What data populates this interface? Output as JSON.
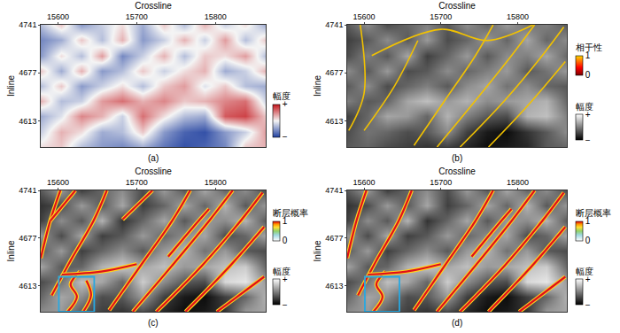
{
  "chart_data": [
    {
      "type": "heatmap",
      "label": "(a)",
      "x_label": "Crossline",
      "y_label": "Inline",
      "xlim": [
        15578,
        15864
      ],
      "xticks": [
        15600,
        15700,
        15800
      ],
      "ylim": [
        4578,
        4741
      ],
      "yticks": [
        4613,
        4677,
        4741
      ],
      "color": "red-white-blue",
      "x": [
        15578,
        15604,
        15630,
        15656,
        15682,
        15708,
        15734,
        15760,
        15786,
        15812,
        15838,
        15864
      ],
      "y": [
        4578,
        4598,
        4619,
        4639,
        4660,
        4680,
        4700,
        4721,
        4741
      ],
      "z": [
        [
          0.1,
          0.2,
          -0.3,
          -0.5,
          -0.6,
          -0.4,
          -0.7,
          -0.9,
          -0.8,
          -0.6,
          0.2,
          0.3
        ],
        [
          -0.2,
          0.3,
          0.1,
          -0.4,
          -0.3,
          0.2,
          -0.5,
          -0.8,
          -0.9,
          -0.5,
          -0.2,
          0.4
        ],
        [
          -0.4,
          -0.1,
          0.5,
          0.3,
          -0.2,
          0.6,
          0.1,
          -0.3,
          -0.4,
          0.7,
          0.8,
          0.2
        ],
        [
          0.3,
          -0.3,
          -0.2,
          0.4,
          0.6,
          0.3,
          0.5,
          0.2,
          0.3,
          0.5,
          0.6,
          -0.2
        ],
        [
          -0.3,
          0.2,
          -0.5,
          -0.2,
          0.1,
          -0.3,
          0.2,
          0.4,
          -0.1,
          0.2,
          -0.3,
          -0.4
        ],
        [
          0.2,
          -0.4,
          0.3,
          -0.5,
          -0.3,
          0.2,
          -0.2,
          0.1,
          0.3,
          -0.4,
          -0.2,
          0.3
        ],
        [
          -0.5,
          0.1,
          -0.3,
          0.4,
          -0.6,
          -0.2,
          0.3,
          -0.3,
          0.2,
          0.1,
          0.4,
          -0.3
        ],
        [
          -0.6,
          -0.4,
          0.2,
          -0.3,
          0.3,
          -0.5,
          -0.2,
          0.3,
          -0.2,
          0.4,
          -0.3,
          0.2
        ],
        [
          -0.3,
          0.2,
          -0.5,
          -0.2,
          0.1,
          -0.4,
          0.2,
          -0.3,
          0.3,
          -0.2,
          0.1,
          -0.4
        ]
      ],
      "colorbar": {
        "title": "幅度",
        "range": [
          -1,
          1
        ],
        "ticks": [
          {
            "value": 1,
            "label": "+"
          },
          {
            "value": -1,
            "label": "−"
          }
        ]
      }
    },
    {
      "type": "heatmap",
      "label": "(b)",
      "x_label": "Crossline",
      "y_label": "Inline",
      "xlim": [
        15578,
        15864
      ],
      "xticks": [
        15600,
        15700,
        15800
      ],
      "ylim": [
        4578,
        4741
      ],
      "yticks": [
        4613,
        4677,
        4741
      ],
      "color": "gray",
      "x": [
        15578,
        15604,
        15630,
        15656,
        15682,
        15708,
        15734,
        15760,
        15786,
        15812,
        15838,
        15864
      ],
      "y": [
        4578,
        4598,
        4619,
        4639,
        4660,
        4680,
        4700,
        4721,
        4741
      ],
      "z": [
        [
          -0.3,
          -0.2,
          -0.4,
          -0.5,
          -0.6,
          -0.5,
          -0.7,
          -0.9,
          -0.8,
          -0.7,
          -0.3,
          -0.2
        ],
        [
          -0.4,
          -0.1,
          -0.2,
          -0.4,
          -0.3,
          0.1,
          -0.5,
          -0.8,
          -0.9,
          -0.6,
          -0.3,
          0.1
        ],
        [
          -0.5,
          -0.2,
          0.3,
          0.2,
          -0.2,
          0.4,
          0.0,
          -0.3,
          -0.4,
          0.4,
          0.5,
          0.0
        ],
        [
          0.0,
          -0.3,
          -0.2,
          0.3,
          0.5,
          0.2,
          0.4,
          0.1,
          0.2,
          0.3,
          0.4,
          -0.2
        ],
        [
          -0.3,
          0.1,
          -0.4,
          -0.2,
          0.0,
          -0.3,
          0.1,
          0.3,
          -0.1,
          0.1,
          -0.2,
          -0.3
        ],
        [
          0.1,
          -0.3,
          0.2,
          -0.4,
          -0.3,
          0.1,
          -0.2,
          0.0,
          0.2,
          -0.3,
          -0.1,
          0.2
        ],
        [
          -0.4,
          0.0,
          -0.3,
          0.3,
          -0.5,
          -0.2,
          0.2,
          -0.3,
          0.1,
          0.0,
          0.3,
          -0.2
        ],
        [
          -0.5,
          -0.3,
          0.1,
          -0.3,
          0.2,
          -0.4,
          -0.2,
          0.2,
          -0.2,
          0.3,
          -0.2,
          0.1
        ],
        [
          -0.3,
          0.1,
          -0.4,
          -0.2,
          0.0,
          -0.3,
          0.1,
          -0.2,
          0.2,
          -0.1,
          0.0,
          -0.3
        ]
      ],
      "colorbar": {
        "title": "幅度",
        "range": [
          -1,
          1
        ],
        "ticks": [
          {
            "value": 1,
            "label": "+"
          },
          {
            "value": -1,
            "label": "−"
          }
        ]
      },
      "overlay": {
        "type": "line",
        "color": "#f2c200",
        "lines": [
          {
            "x": [
              15580,
              15600,
              15595
            ],
            "y": [
              4600,
              4650,
              4741
            ]
          },
          {
            "x": [
              15600,
              15640,
              15670
            ],
            "y": [
              4600,
              4660,
              4720
            ]
          },
          {
            "x": [
              15665,
              15705,
              15745,
              15768
            ],
            "y": [
              4580,
              4640,
              4700,
              4741
            ]
          },
          {
            "x": [
              15695,
              15745,
              15792,
              15822
            ],
            "y": [
              4578,
              4640,
              4700,
              4741
            ]
          },
          {
            "x": [
              15725,
              15783,
              15832,
              15860
            ],
            "y": [
              4578,
              4640,
              4700,
              4738
            ]
          },
          {
            "x": [
              15762,
              15812,
              15862
            ],
            "y": [
              4578,
              4632,
              4692
            ]
          },
          {
            "x": [
              15610,
              15700,
              15760,
              15820
            ],
            "y": [
              4700,
              4735,
              4720,
              4741
            ]
          }
        ],
        "colorbar": {
          "title": "相干性",
          "color": "red-yellow",
          "range": [
            0,
            1
          ],
          "ticks": [
            0,
            1
          ]
        }
      }
    },
    {
      "type": "heatmap",
      "label": "(c)",
      "x_label": "Crossline",
      "y_label": "Inline",
      "xlim": [
        15578,
        15864
      ],
      "xticks": [
        15600,
        15700,
        15800
      ],
      "ylim": [
        4578,
        4741
      ],
      "yticks": [
        4613,
        4677,
        4741
      ],
      "color": "gray",
      "x": [
        15578,
        15604,
        15630,
        15656,
        15682,
        15708,
        15734,
        15760,
        15786,
        15812,
        15838,
        15864
      ],
      "y": [
        4578,
        4598,
        4619,
        4639,
        4660,
        4680,
        4700,
        4721,
        4741
      ],
      "z": [
        [
          0.1,
          0.2,
          -0.3,
          -0.5,
          -0.6,
          -0.4,
          -0.7,
          -0.9,
          -0.8,
          -0.6,
          0.2,
          0.3
        ],
        [
          -0.2,
          0.3,
          0.1,
          -0.4,
          -0.3,
          0.2,
          -0.5,
          -0.8,
          -0.9,
          -0.5,
          -0.2,
          0.4
        ],
        [
          -0.4,
          -0.1,
          0.5,
          0.3,
          -0.2,
          0.6,
          0.1,
          -0.3,
          -0.4,
          0.7,
          0.8,
          0.2
        ],
        [
          0.3,
          -0.3,
          -0.2,
          0.4,
          0.6,
          0.3,
          0.5,
          0.2,
          0.3,
          0.5,
          0.6,
          -0.2
        ],
        [
          -0.3,
          0.2,
          -0.5,
          -0.2,
          0.1,
          -0.3,
          0.2,
          0.4,
          -0.1,
          0.2,
          -0.3,
          -0.4
        ],
        [
          0.2,
          -0.4,
          0.3,
          -0.5,
          -0.3,
          0.2,
          -0.2,
          0.1,
          0.3,
          -0.4,
          -0.2,
          0.3
        ],
        [
          -0.5,
          0.1,
          -0.3,
          0.4,
          -0.6,
          -0.2,
          0.3,
          -0.3,
          0.2,
          0.1,
          0.4,
          -0.3
        ],
        [
          -0.6,
          -0.4,
          0.2,
          -0.3,
          0.3,
          -0.5,
          -0.2,
          0.3,
          -0.2,
          0.4,
          -0.3,
          0.2
        ],
        [
          -0.3,
          0.2,
          -0.5,
          -0.2,
          0.1,
          -0.4,
          0.2,
          -0.3,
          0.3,
          -0.2,
          0.1,
          -0.4
        ]
      ],
      "colorbar": {
        "title": "幅度",
        "range": [
          -1,
          1
        ],
        "ticks": [
          {
            "value": 1,
            "label": "+"
          },
          {
            "value": -1,
            "label": "−"
          }
        ]
      },
      "overlay": {
        "type": "line",
        "color": "#e0101a",
        "lines": [
          {
            "x": [
              15578,
              15590,
              15603
            ],
            "y": [
              4650,
              4700,
              4741
            ]
          },
          {
            "x": [
              15590,
              15622
            ],
            "y": [
              4700,
              4741
            ]
          },
          {
            "x": [
              15592,
              15615,
              15645,
              15662
            ],
            "y": [
              4600,
              4645,
              4700,
              4741
            ]
          },
          {
            "x": [
              15612,
              15624,
              15616,
              15628
            ],
            "y": [
              4578,
              4598,
              4615,
              4632
            ]
          },
          {
            "x": [
              15632,
              15642,
              15636
            ],
            "y": [
              4578,
              4600,
              4620
            ]
          },
          {
            "x": [
              15665,
              15705,
              15745,
              15768
            ],
            "y": [
              4580,
              4640,
              4700,
              4741
            ]
          },
          {
            "x": [
              15682,
              15720
            ],
            "y": [
              4702,
              4741
            ]
          },
          {
            "x": [
              15695,
              15745,
              15792,
              15822
            ],
            "y": [
              4578,
              4640,
              4700,
              4741
            ]
          },
          {
            "x": [
              15725,
              15783,
              15832,
              15860
            ],
            "y": [
              4578,
              4640,
              4700,
              4738
            ]
          },
          {
            "x": [
              15762,
              15812,
              15862
            ],
            "y": [
              4578,
              4632,
              4692
            ]
          },
          {
            "x": [
              15802,
              15862
            ],
            "y": [
              4578,
              4625
            ]
          },
          {
            "x": [
              15605,
              15655,
              15700
            ],
            "y": [
              4628,
              4632,
              4642
            ]
          },
          {
            "x": [
              15740,
              15772,
              15792
            ],
            "y": [
              4652,
              4692,
              4716
            ]
          }
        ],
        "colorbar": {
          "title": "断层概率",
          "color": "white-green-red",
          "range": [
            0,
            1
          ],
          "ticks": [
            0,
            1
          ]
        }
      },
      "highlight_box": {
        "x": [
          15601,
          15646
        ],
        "y": [
          4578,
          4625
        ],
        "color": "#29a8e0"
      }
    },
    {
      "type": "heatmap",
      "label": "(d)",
      "x_label": "Crossline",
      "y_label": "Inline",
      "xlim": [
        15578,
        15864
      ],
      "xticks": [
        15600,
        15700,
        15800
      ],
      "ylim": [
        4578,
        4741
      ],
      "yticks": [
        4613,
        4677,
        4741
      ],
      "color": "gray",
      "x": [
        15578,
        15604,
        15630,
        15656,
        15682,
        15708,
        15734,
        15760,
        15786,
        15812,
        15838,
        15864
      ],
      "y": [
        4578,
        4598,
        4619,
        4639,
        4660,
        4680,
        4700,
        4721,
        4741
      ],
      "z": [
        [
          0.1,
          0.2,
          -0.3,
          -0.5,
          -0.6,
          -0.4,
          -0.7,
          -0.9,
          -0.8,
          -0.6,
          0.2,
          0.3
        ],
        [
          -0.2,
          0.3,
          0.1,
          -0.4,
          -0.3,
          0.2,
          -0.5,
          -0.8,
          -0.9,
          -0.5,
          -0.2,
          0.4
        ],
        [
          -0.4,
          -0.1,
          0.5,
          0.3,
          -0.2,
          0.6,
          0.1,
          -0.3,
          -0.4,
          0.7,
          0.8,
          0.2
        ],
        [
          0.3,
          -0.3,
          -0.2,
          0.4,
          0.6,
          0.3,
          0.5,
          0.2,
          0.3,
          0.5,
          0.6,
          -0.2
        ],
        [
          -0.3,
          0.2,
          -0.5,
          -0.2,
          0.1,
          -0.3,
          0.2,
          0.4,
          -0.1,
          0.2,
          -0.3,
          -0.4
        ],
        [
          0.2,
          -0.4,
          0.3,
          -0.5,
          -0.3,
          0.2,
          -0.2,
          0.1,
          0.3,
          -0.4,
          -0.2,
          0.3
        ],
        [
          -0.5,
          0.1,
          -0.3,
          0.4,
          -0.6,
          -0.2,
          0.3,
          -0.3,
          0.2,
          0.1,
          0.4,
          -0.3
        ],
        [
          -0.6,
          -0.4,
          0.2,
          -0.3,
          0.3,
          -0.5,
          -0.2,
          0.3,
          -0.2,
          0.4,
          -0.3,
          0.2
        ],
        [
          -0.3,
          0.2,
          -0.5,
          -0.2,
          0.1,
          -0.4,
          0.2,
          -0.3,
          0.3,
          -0.2,
          0.1,
          -0.4
        ]
      ],
      "colorbar": {
        "title": "幅度",
        "range": [
          -1,
          1
        ],
        "ticks": [
          {
            "value": 1,
            "label": "+"
          },
          {
            "value": -1,
            "label": "−"
          }
        ]
      },
      "overlay": {
        "type": "line",
        "color": "#e0101a",
        "lines": [
          {
            "x": [
              15578,
              15590,
              15603
            ],
            "y": [
              4650,
              4700,
              4741
            ]
          },
          {
            "x": [
              15592,
              15615,
              15645,
              15662
            ],
            "y": [
              4600,
              4645,
              4700,
              4741
            ]
          },
          {
            "x": [
              15612,
              15624,
              15616,
              15628
            ],
            "y": [
              4578,
              4598,
              4615,
              4632
            ]
          },
          {
            "x": [
              15665,
              15705,
              15745,
              15768
            ],
            "y": [
              4580,
              4640,
              4700,
              4741
            ]
          },
          {
            "x": [
              15695,
              15745,
              15792,
              15822
            ],
            "y": [
              4578,
              4640,
              4700,
              4741
            ]
          },
          {
            "x": [
              15725,
              15783,
              15832,
              15860
            ],
            "y": [
              4578,
              4640,
              4700,
              4738
            ]
          },
          {
            "x": [
              15762,
              15812,
              15862
            ],
            "y": [
              4578,
              4632,
              4692
            ]
          },
          {
            "x": [
              15802,
              15862
            ],
            "y": [
              4578,
              4625
            ]
          },
          {
            "x": [
              15605,
              15655,
              15700
            ],
            "y": [
              4628,
              4632,
              4642
            ]
          },
          {
            "x": [
              15740,
              15772,
              15792
            ],
            "y": [
              4652,
              4692,
              4716
            ]
          }
        ],
        "colorbar": {
          "title": "断层概率",
          "color": "white-green-red",
          "range": [
            0,
            1
          ],
          "ticks": [
            0,
            1
          ]
        }
      },
      "highlight_box": {
        "x": [
          15601,
          15646
        ],
        "y": [
          4578,
          4625
        ],
        "color": "#29a8e0"
      }
    }
  ]
}
